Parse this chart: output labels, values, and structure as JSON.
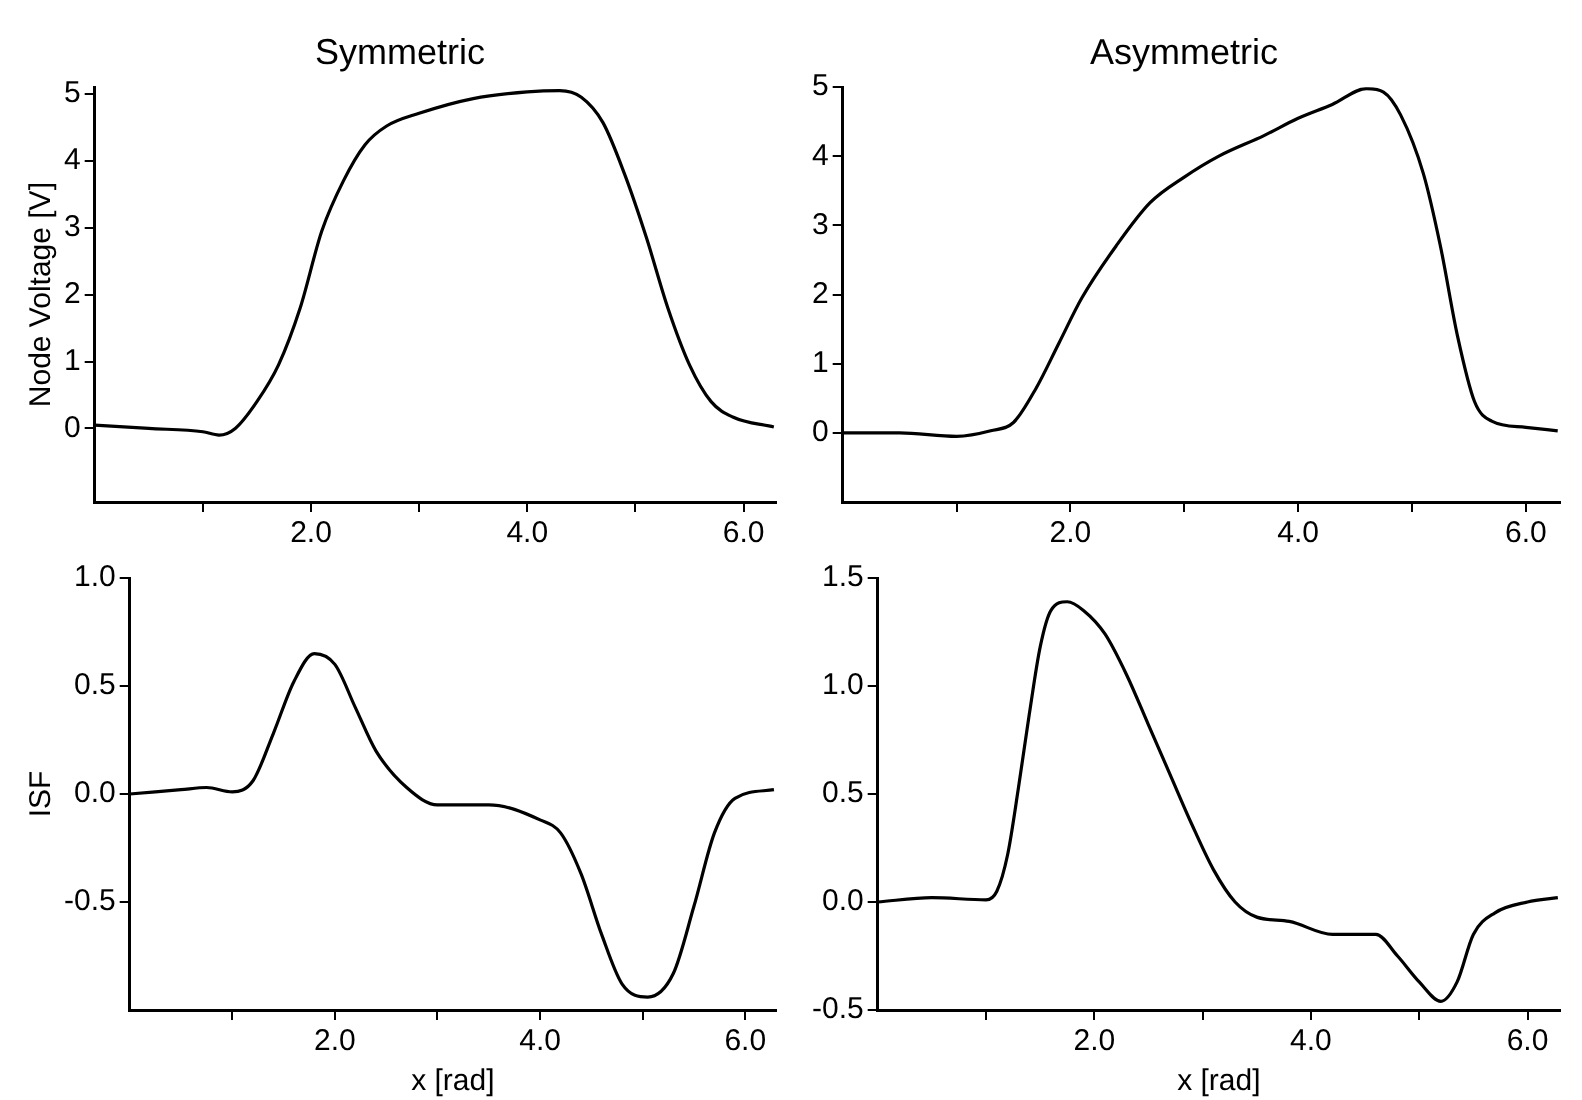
{
  "chart_data": [
    {
      "type": "line",
      "title": "Symmetric",
      "ylabel": "Node Voltage [V]",
      "color": "#000000",
      "grid": false,
      "legend": false,
      "marker": "none",
      "line_style": "solid",
      "xlim": [
        0,
        6.3
      ],
      "xticks": [
        {
          "value": 1,
          "label": null
        },
        {
          "value": 2,
          "label": "2.0"
        },
        {
          "value": 3,
          "label": null
        },
        {
          "value": 4,
          "label": "4.0"
        },
        {
          "value": 5,
          "label": null
        },
        {
          "value": 6,
          "label": "6.0"
        }
      ],
      "ylim": [
        -1.1,
        5.1
      ],
      "yticks": [
        0,
        1,
        2,
        3,
        4,
        5
      ],
      "x": [
        0,
        0.5,
        1.0,
        1.15,
        1.3,
        1.5,
        1.7,
        1.9,
        2.1,
        2.3,
        2.5,
        2.7,
        3.0,
        3.5,
        4.0,
        4.3,
        4.5,
        4.7,
        4.9,
        5.1,
        5.3,
        5.5,
        5.7,
        5.9,
        6.28
      ],
      "values": [
        0.05,
        0.0,
        -0.05,
        -0.1,
        0.0,
        0.4,
        0.95,
        1.8,
        2.95,
        3.7,
        4.24,
        4.52,
        4.71,
        4.93,
        5.03,
        5.05,
        4.95,
        4.57,
        3.8,
        2.86,
        1.8,
        0.95,
        0.4,
        0.17,
        0.02
      ]
    },
    {
      "type": "line",
      "title": "Asymmetric",
      "color": "#000000",
      "grid": false,
      "legend": false,
      "marker": "none",
      "line_style": "solid",
      "xlim": [
        0,
        6.3
      ],
      "xticks": [
        {
          "value": 1,
          "label": null
        },
        {
          "value": 2,
          "label": "2.0"
        },
        {
          "value": 3,
          "label": null
        },
        {
          "value": 4,
          "label": "4.0"
        },
        {
          "value": 5,
          "label": null
        },
        {
          "value": 6,
          "label": "6.0"
        }
      ],
      "ylim": [
        -1.0,
        5.0
      ],
      "yticks": [
        0,
        1,
        2,
        3,
        4,
        5
      ],
      "x": [
        0,
        0.5,
        1.0,
        1.3,
        1.5,
        1.7,
        1.9,
        2.1,
        2.4,
        2.7,
        3.0,
        3.3,
        3.7,
        4.0,
        4.3,
        4.6,
        4.75,
        4.9,
        5.1,
        5.25,
        5.4,
        5.55,
        5.7,
        6.0,
        6.28
      ],
      "values": [
        0.0,
        0.0,
        -0.05,
        0.03,
        0.15,
        0.65,
        1.3,
        1.95,
        2.7,
        3.33,
        3.7,
        4.0,
        4.3,
        4.55,
        4.75,
        4.98,
        4.93,
        4.6,
        3.75,
        2.7,
        1.4,
        0.45,
        0.17,
        0.08,
        0.03
      ]
    },
    {
      "type": "line",
      "xlabel": "x [rad]",
      "ylabel": "ISF",
      "color": "#000000",
      "grid": false,
      "legend": false,
      "marker": "none",
      "line_style": "solid",
      "xlim": [
        0,
        6.3
      ],
      "xticks": [
        {
          "value": 1,
          "label": null
        },
        {
          "value": 2,
          "label": "2.0"
        },
        {
          "value": 3,
          "label": null
        },
        {
          "value": 4,
          "label": "4.0"
        },
        {
          "value": 5,
          "label": null
        },
        {
          "value": 6,
          "label": "6.0"
        }
      ],
      "ylim": [
        -1.0,
        1.0
      ],
      "yticks": [
        {
          "value": -0.5,
          "label": "-0.5"
        },
        {
          "value": 0,
          "label": "0.0"
        },
        {
          "value": 0.5,
          "label": "0.5"
        },
        {
          "value": 1,
          "label": "1.0"
        }
      ],
      "x": [
        0,
        0.5,
        0.75,
        1.0,
        1.2,
        1.4,
        1.6,
        1.8,
        2.0,
        2.2,
        2.4,
        2.7,
        3.0,
        3.5,
        4.0,
        4.2,
        4.4,
        4.6,
        4.8,
        5.05,
        5.3,
        5.5,
        5.7,
        5.9,
        6.28
      ],
      "values": [
        0.0,
        0.02,
        0.03,
        0.01,
        0.06,
        0.28,
        0.52,
        0.65,
        0.6,
        0.4,
        0.2,
        0.03,
        -0.05,
        -0.05,
        -0.12,
        -0.18,
        -0.37,
        -0.65,
        -0.88,
        -0.94,
        -0.83,
        -0.52,
        -0.18,
        -0.02,
        0.02
      ]
    },
    {
      "type": "line",
      "xlabel": "x [rad]",
      "color": "#000000",
      "grid": false,
      "legend": false,
      "marker": "none",
      "line_style": "solid",
      "xlim": [
        0,
        6.3
      ],
      "xticks": [
        {
          "value": 1,
          "label": null
        },
        {
          "value": 2,
          "label": "2.0"
        },
        {
          "value": 3,
          "label": null
        },
        {
          "value": 4,
          "label": "4.0"
        },
        {
          "value": 5,
          "label": null
        },
        {
          "value": 6,
          "label": "6.0"
        }
      ],
      "ylim": [
        -0.5,
        1.5
      ],
      "yticks": [
        {
          "value": -0.5,
          "label": "-0.5"
        },
        {
          "value": 0,
          "label": "0.0"
        },
        {
          "value": 0.5,
          "label": "0.5"
        },
        {
          "value": 1,
          "label": "1.0"
        },
        {
          "value": 1.5,
          "label": "1.5"
        }
      ],
      "x": [
        0,
        0.5,
        1.0,
        1.1,
        1.2,
        1.3,
        1.4,
        1.5,
        1.6,
        1.75,
        1.9,
        2.1,
        2.3,
        2.5,
        2.7,
        2.9,
        3.1,
        3.3,
        3.5,
        3.8,
        4.2,
        4.6,
        4.8,
        5.0,
        5.2,
        5.35,
        5.5,
        5.7,
        6.0,
        6.28
      ],
      "values": [
        0.0,
        0.02,
        0.01,
        0.05,
        0.22,
        0.53,
        0.87,
        1.18,
        1.35,
        1.39,
        1.35,
        1.24,
        1.05,
        0.82,
        0.59,
        0.36,
        0.15,
        0.0,
        -0.07,
        -0.09,
        -0.15,
        -0.15,
        -0.25,
        -0.37,
        -0.46,
        -0.37,
        -0.15,
        -0.05,
        0.0,
        0.02
      ]
    }
  ]
}
